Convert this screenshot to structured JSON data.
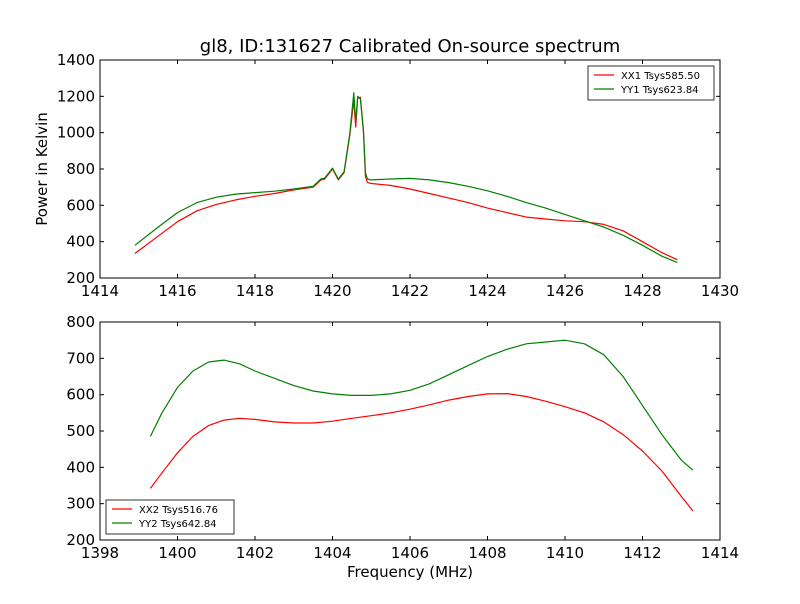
{
  "chart_data": [
    {
      "type": "line",
      "title": "gl8, ID:131627 Calibrated On-source spectrum",
      "xlabel": "",
      "ylabel": "Power in Kelvin",
      "xlim": [
        1414,
        1430
      ],
      "ylim": [
        200,
        1400
      ],
      "xticks": [
        1414,
        1416,
        1418,
        1420,
        1422,
        1424,
        1426,
        1428,
        1430
      ],
      "yticks": [
        200,
        400,
        600,
        800,
        1000,
        1200,
        1400
      ],
      "grid": false,
      "legend_position": "top-right",
      "series": [
        {
          "name": "XX1 Tsys585.50",
          "color": "#ff0000",
          "x": [
            1414.9,
            1415.5,
            1416.0,
            1416.5,
            1417.0,
            1417.5,
            1418.0,
            1418.5,
            1419.0,
            1419.5,
            1419.7,
            1419.8,
            1420.0,
            1420.15,
            1420.3,
            1420.45,
            1420.55,
            1420.6,
            1420.65,
            1420.72,
            1420.8,
            1420.85,
            1420.9,
            1421.0,
            1421.5,
            1422.0,
            1422.5,
            1423.0,
            1423.5,
            1424.0,
            1424.5,
            1425.0,
            1425.5,
            1426.0,
            1426.5,
            1427.0,
            1427.5,
            1428.0,
            1428.5,
            1428.9
          ],
          "values": [
            335,
            430,
            510,
            570,
            605,
            630,
            650,
            665,
            685,
            700,
            740,
            745,
            800,
            740,
            780,
            990,
            1180,
            1030,
            1190,
            1195,
            1000,
            760,
            725,
            720,
            710,
            690,
            665,
            640,
            615,
            585,
            560,
            535,
            525,
            515,
            510,
            495,
            460,
            400,
            340,
            300
          ]
        },
        {
          "name": "YY1 Tsys623.84",
          "color": "#008000",
          "x": [
            1414.9,
            1415.5,
            1416.0,
            1416.5,
            1417.0,
            1417.5,
            1418.0,
            1418.5,
            1419.0,
            1419.5,
            1419.7,
            1419.8,
            1420.0,
            1420.15,
            1420.3,
            1420.45,
            1420.55,
            1420.6,
            1420.65,
            1420.72,
            1420.8,
            1420.85,
            1420.9,
            1421.0,
            1421.5,
            1422.0,
            1422.5,
            1423.0,
            1423.5,
            1424.0,
            1424.5,
            1425.0,
            1425.5,
            1426.0,
            1426.5,
            1427.0,
            1427.5,
            1428.0,
            1428.5,
            1428.9
          ],
          "values": [
            380,
            480,
            560,
            615,
            645,
            662,
            670,
            678,
            690,
            705,
            745,
            750,
            805,
            745,
            785,
            1000,
            1220,
            1060,
            1200,
            1185,
            1010,
            780,
            745,
            740,
            745,
            748,
            740,
            725,
            705,
            680,
            650,
            615,
            585,
            550,
            515,
            480,
            435,
            380,
            320,
            285
          ]
        }
      ]
    },
    {
      "type": "line",
      "title": "",
      "xlabel": "Frequency (MHz)",
      "ylabel": "",
      "xlim": [
        1398,
        1414
      ],
      "ylim": [
        200,
        800
      ],
      "xticks": [
        1398,
        1400,
        1402,
        1404,
        1406,
        1408,
        1410,
        1412,
        1414
      ],
      "yticks": [
        200,
        300,
        400,
        500,
        600,
        700,
        800
      ],
      "grid": false,
      "legend_position": "bottom-left",
      "series": [
        {
          "name": "XX2 Tsys516.76",
          "color": "#ff0000",
          "x": [
            1399.3,
            1399.6,
            1400.0,
            1400.4,
            1400.8,
            1401.2,
            1401.6,
            1402.0,
            1402.5,
            1403.0,
            1403.5,
            1404.0,
            1404.5,
            1405.0,
            1405.5,
            1406.0,
            1406.5,
            1407.0,
            1407.5,
            1408.0,
            1408.5,
            1409.0,
            1409.5,
            1410.0,
            1410.5,
            1411.0,
            1411.5,
            1412.0,
            1412.5,
            1413.0,
            1413.3
          ],
          "values": [
            342,
            385,
            440,
            485,
            515,
            530,
            535,
            532,
            525,
            522,
            522,
            527,
            535,
            542,
            550,
            560,
            572,
            585,
            595,
            602,
            603,
            595,
            582,
            567,
            550,
            525,
            490,
            445,
            390,
            320,
            280
          ]
        },
        {
          "name": "YY2 Tsys642.84",
          "color": "#008000",
          "x": [
            1399.3,
            1399.6,
            1400.0,
            1400.4,
            1400.8,
            1401.2,
            1401.6,
            1402.0,
            1402.5,
            1403.0,
            1403.5,
            1404.0,
            1404.5,
            1405.0,
            1405.5,
            1406.0,
            1406.5,
            1407.0,
            1407.5,
            1408.0,
            1408.5,
            1409.0,
            1409.5,
            1410.0,
            1410.5,
            1411.0,
            1411.5,
            1412.0,
            1412.5,
            1413.0,
            1413.3
          ],
          "values": [
            485,
            550,
            620,
            665,
            690,
            695,
            685,
            665,
            645,
            625,
            610,
            602,
            598,
            598,
            602,
            612,
            630,
            655,
            680,
            705,
            725,
            740,
            745,
            750,
            740,
            710,
            650,
            570,
            490,
            420,
            392
          ]
        }
      ]
    }
  ]
}
